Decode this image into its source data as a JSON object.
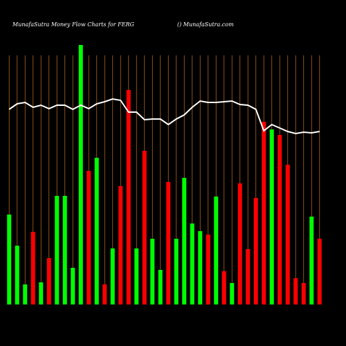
{
  "chart_data": {
    "type": "bar",
    "title": "MunafaSutra  Money Flow  Charts for FERG",
    "subtitle": "() MunafaSutra.com",
    "categories": [
      null,
      null,
      null,
      null,
      null,
      null,
      null,
      null,
      null,
      null,
      null,
      null,
      null,
      null,
      null,
      null,
      null,
      null,
      null,
      null,
      null,
      null,
      null,
      null,
      null,
      null,
      null,
      null,
      null,
      null,
      null,
      null,
      null,
      null,
      null,
      null,
      null,
      null,
      null,
      null
    ],
    "values": [
      130,
      85,
      29,
      105,
      32,
      67,
      157,
      157,
      53,
      375,
      193,
      212,
      29,
      81,
      171,
      310,
      81,
      222,
      95,
      50,
      177,
      95,
      183,
      117,
      106,
      101,
      156,
      48,
      31,
      175,
      80,
      154,
      264,
      253,
      245,
      202,
      38,
      31,
      127,
      95
    ],
    "colors": [
      "#00ff00",
      "#00ff00",
      "#00ff00",
      "#ff0000",
      "#00ff00",
      "#ff0000",
      "#00ff00",
      "#00ff00",
      "#00ff00",
      "#00ff00",
      "#ff0000",
      "#00ff00",
      "#ff0000",
      "#00ff00",
      "#ff0000",
      "#ff0000",
      "#00ff00",
      "#ff0000",
      "#00ff00",
      "#00ff00",
      "#ff0000",
      "#00ff00",
      "#00ff00",
      "#00ff00",
      "#00ff00",
      "#ff0000",
      "#00ff00",
      "#ff0000",
      "#00ff00",
      "#ff0000",
      "#ff0000",
      "#ff0000",
      "#ff0000",
      "#00ff00",
      "#ff0000",
      "#ff0000",
      "#ff0000",
      "#ff0000",
      "#00ff00",
      "#ff0000"
    ],
    "line": {
      "values": [
        282,
        290,
        292,
        285,
        288,
        283,
        288,
        288,
        282,
        288,
        283,
        290,
        293,
        297,
        295,
        278,
        278,
        267,
        268,
        268,
        260,
        268,
        274,
        285,
        294,
        292,
        292,
        293,
        294,
        289,
        288,
        282,
        251,
        260,
        255,
        250,
        247,
        249,
        248,
        250
      ],
      "color": "#ffffff"
    },
    "ylim": [
      0,
      380
    ],
    "grid_color": "#b5651d"
  }
}
